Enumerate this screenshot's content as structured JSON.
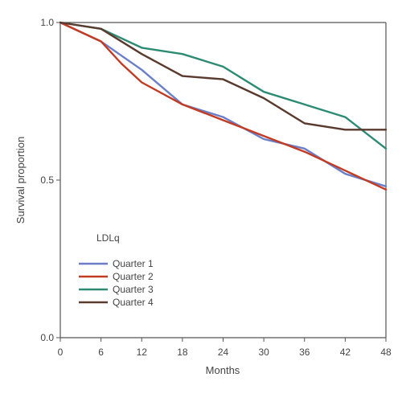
{
  "chart_data": {
    "type": "line",
    "title": "",
    "xlabel": "Months",
    "ylabel": "Survival proportion",
    "xlim": [
      0,
      48
    ],
    "ylim": [
      0,
      1
    ],
    "x_ticks": [
      0,
      6,
      12,
      18,
      24,
      30,
      36,
      42,
      48
    ],
    "x_tick_labels": [
      "0",
      "6",
      "12",
      "18",
      "24",
      "30",
      "36",
      "42",
      "48"
    ],
    "y_ticks": [
      0,
      0.5,
      1
    ],
    "y_tick_labels": [
      "0.0",
      "0.5",
      "1.0"
    ],
    "grid": false,
    "legend_title": "LDLq",
    "legend_position": "lower-left",
    "series": [
      {
        "name": "Quarter 1",
        "color": "#6a7fc8",
        "x": [
          0,
          6,
          12,
          18,
          24,
          30,
          36,
          42,
          48
        ],
        "y": [
          1.0,
          0.94,
          0.85,
          0.74,
          0.7,
          0.63,
          0.6,
          0.52,
          0.48
        ]
      },
      {
        "name": "Quarter 2",
        "color": "#c23b22",
        "x": [
          0,
          6,
          9,
          12,
          18,
          24,
          30,
          36,
          42,
          48
        ],
        "y": [
          1.0,
          0.94,
          0.87,
          0.81,
          0.74,
          0.69,
          0.64,
          0.59,
          0.53,
          0.47
        ]
      },
      {
        "name": "Quarter 3",
        "color": "#2e8b73",
        "x": [
          0,
          6,
          12,
          18,
          24,
          30,
          36,
          42,
          48
        ],
        "y": [
          1.0,
          0.98,
          0.92,
          0.9,
          0.86,
          0.78,
          0.74,
          0.7,
          0.6
        ]
      },
      {
        "name": "Quarter 4",
        "color": "#5a3a2e",
        "x": [
          0,
          6,
          12,
          18,
          24,
          30,
          36,
          42,
          48
        ],
        "y": [
          1.0,
          0.98,
          0.9,
          0.83,
          0.82,
          0.76,
          0.68,
          0.66,
          0.66
        ]
      }
    ]
  }
}
